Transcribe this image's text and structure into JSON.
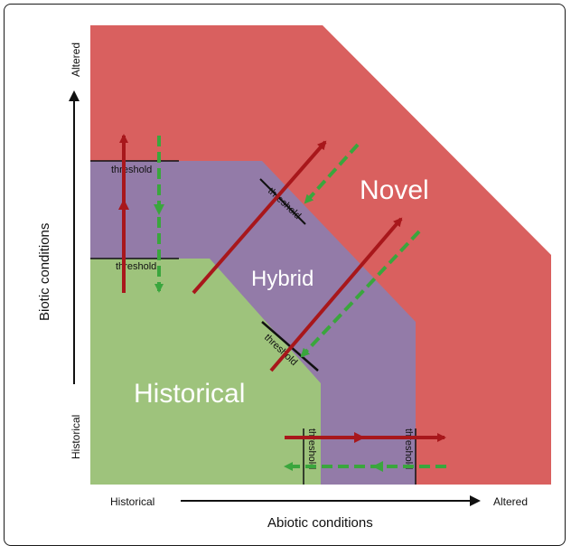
{
  "regions": {
    "novel": "Novel",
    "hybrid": "Hybrid",
    "historical": "Historical"
  },
  "threshold_label": "threshold",
  "x_axis": {
    "title": "Abiotic conditions",
    "start": "Historical",
    "end": "Altered"
  },
  "y_axis": {
    "title": "Biotic conditions",
    "start": "Historical",
    "end": "Altered"
  },
  "colors": {
    "novel": "#d9605f",
    "hybrid": "#937ba8",
    "historical": "#9ec37c",
    "red_arrow": "#a8171b",
    "green_arrow": "#3aa63d"
  }
}
